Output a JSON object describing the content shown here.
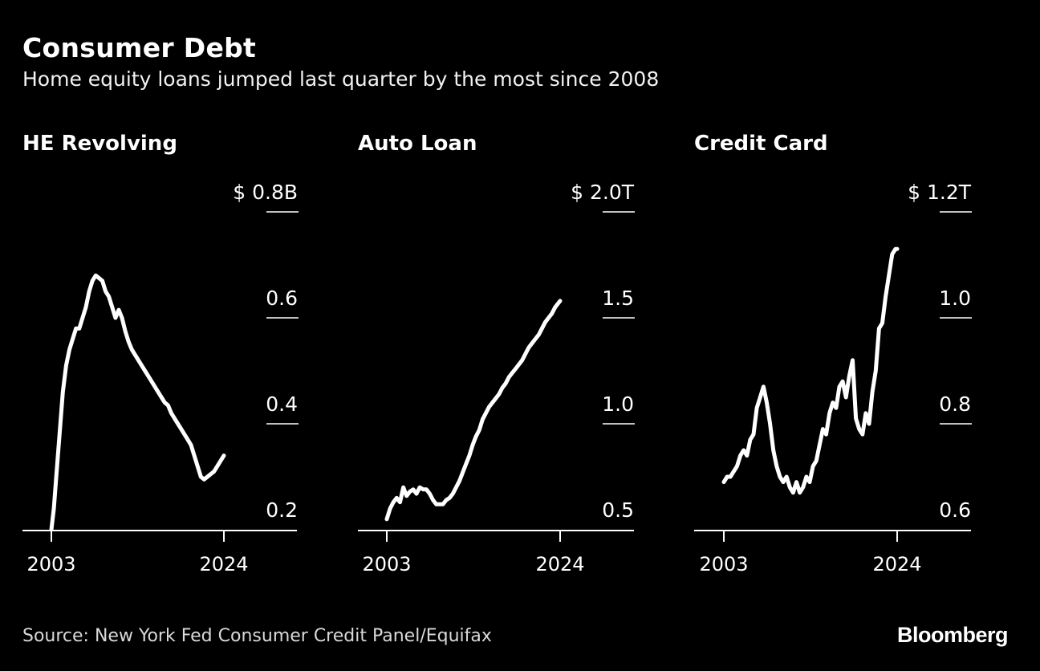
{
  "header": {
    "title": "Consumer Debt",
    "subtitle": "Home equity loans jumped last quarter by the most since 2008"
  },
  "footer": {
    "source": "Source: New York Fed Consumer Credit Panel/Equifax",
    "logo": "Bloomberg"
  },
  "colors": {
    "background": "#000000",
    "line": "#ffffff",
    "axis": "#ffffff"
  },
  "chart_data": [
    {
      "type": "line",
      "title": "HE Revolving",
      "unit": "B",
      "ylim": [
        0.2,
        0.8
      ],
      "yticks": [
        0.2,
        0.4,
        0.6,
        0.8
      ],
      "ytick_labels": [
        "0.2",
        "0.4",
        "0.6",
        "$ 0.8B"
      ],
      "xlim": [
        2003,
        2024
      ],
      "xticks": [
        2003,
        2024
      ],
      "grid": false,
      "x": [
        2003.0,
        2003.3,
        2003.6,
        2004.0,
        2004.4,
        2004.8,
        2005.2,
        2005.6,
        2006.0,
        2006.4,
        2006.8,
        2007.2,
        2007.6,
        2008.0,
        2008.4,
        2008.8,
        2009.2,
        2009.6,
        2010.0,
        2010.4,
        2010.8,
        2011.2,
        2011.6,
        2012.0,
        2012.4,
        2012.8,
        2013.2,
        2013.6,
        2014.0,
        2014.4,
        2014.8,
        2015.2,
        2015.6,
        2016.0,
        2016.4,
        2016.8,
        2017.2,
        2017.6,
        2018.0,
        2018.4,
        2018.8,
        2019.2,
        2019.6,
        2020.0,
        2020.4,
        2020.8,
        2021.2,
        2021.6,
        2022.0,
        2022.4,
        2022.8,
        2023.2,
        2023.6,
        2024.0
      ],
      "y": [
        0.2,
        0.24,
        0.3,
        0.38,
        0.46,
        0.51,
        0.54,
        0.56,
        0.58,
        0.58,
        0.6,
        0.62,
        0.65,
        0.67,
        0.68,
        0.675,
        0.67,
        0.65,
        0.64,
        0.62,
        0.6,
        0.615,
        0.6,
        0.575,
        0.555,
        0.54,
        0.53,
        0.52,
        0.51,
        0.5,
        0.49,
        0.48,
        0.47,
        0.46,
        0.45,
        0.44,
        0.435,
        0.42,
        0.41,
        0.4,
        0.39,
        0.38,
        0.37,
        0.36,
        0.34,
        0.32,
        0.3,
        0.295,
        0.3,
        0.305,
        0.31,
        0.32,
        0.33,
        0.34
      ]
    },
    {
      "type": "line",
      "title": "Auto Loan",
      "unit": "T",
      "ylim": [
        0.5,
        2.0
      ],
      "yticks": [
        0.5,
        1.0,
        1.5,
        2.0
      ],
      "ytick_labels": [
        "0.5",
        "1.0",
        "1.5",
        "$ 2.0T"
      ],
      "xlim": [
        2003,
        2024
      ],
      "xticks": [
        2003,
        2024
      ],
      "grid": false,
      "x": [
        2003.0,
        2003.4,
        2003.8,
        2004.2,
        2004.6,
        2005.0,
        2005.4,
        2005.8,
        2006.2,
        2006.6,
        2007.0,
        2007.4,
        2007.8,
        2008.2,
        2008.6,
        2009.0,
        2009.4,
        2009.8,
        2010.2,
        2010.6,
        2011.0,
        2011.4,
        2011.8,
        2012.2,
        2012.6,
        2013.0,
        2013.4,
        2013.8,
        2014.2,
        2014.6,
        2015.0,
        2015.4,
        2015.8,
        2016.2,
        2016.6,
        2017.0,
        2017.4,
        2017.8,
        2018.2,
        2018.6,
        2019.0,
        2019.4,
        2019.8,
        2020.2,
        2020.6,
        2021.0,
        2021.4,
        2021.8,
        2022.2,
        2022.6,
        2023.0,
        2023.4,
        2023.8,
        2024.0
      ],
      "y": [
        0.55,
        0.6,
        0.63,
        0.65,
        0.63,
        0.7,
        0.66,
        0.68,
        0.69,
        0.67,
        0.7,
        0.69,
        0.69,
        0.67,
        0.64,
        0.62,
        0.62,
        0.62,
        0.64,
        0.65,
        0.67,
        0.7,
        0.73,
        0.77,
        0.81,
        0.85,
        0.9,
        0.94,
        0.97,
        1.02,
        1.05,
        1.08,
        1.1,
        1.12,
        1.14,
        1.17,
        1.19,
        1.22,
        1.24,
        1.26,
        1.28,
        1.3,
        1.33,
        1.36,
        1.38,
        1.4,
        1.42,
        1.45,
        1.48,
        1.5,
        1.52,
        1.55,
        1.57,
        1.58
      ]
    },
    {
      "type": "line",
      "title": "Credit Card",
      "unit": "T",
      "ylim": [
        0.6,
        1.2
      ],
      "yticks": [
        0.6,
        0.8,
        1.0,
        1.2
      ],
      "ytick_labels": [
        "0.6",
        "0.8",
        "1.0",
        "$ 1.2T"
      ],
      "xlim": [
        2003,
        2024
      ],
      "xticks": [
        2003,
        2024
      ],
      "grid": false,
      "x": [
        2003.0,
        2003.4,
        2003.8,
        2004.2,
        2004.6,
        2005.0,
        2005.4,
        2005.8,
        2006.2,
        2006.6,
        2007.0,
        2007.4,
        2007.8,
        2008.2,
        2008.6,
        2009.0,
        2009.4,
        2009.8,
        2010.2,
        2010.6,
        2011.0,
        2011.4,
        2011.8,
        2012.2,
        2012.6,
        2013.0,
        2013.4,
        2013.8,
        2014.2,
        2014.6,
        2015.0,
        2015.4,
        2015.8,
        2016.2,
        2016.6,
        2017.0,
        2017.4,
        2017.8,
        2018.2,
        2018.6,
        2019.0,
        2019.4,
        2019.8,
        2020.2,
        2020.6,
        2021.0,
        2021.4,
        2021.8,
        2022.2,
        2022.6,
        2023.0,
        2023.4,
        2023.8,
        2024.0
      ],
      "y": [
        0.69,
        0.7,
        0.7,
        0.71,
        0.72,
        0.74,
        0.75,
        0.74,
        0.77,
        0.78,
        0.83,
        0.85,
        0.87,
        0.84,
        0.8,
        0.75,
        0.72,
        0.7,
        0.69,
        0.7,
        0.68,
        0.67,
        0.69,
        0.67,
        0.68,
        0.7,
        0.69,
        0.72,
        0.73,
        0.76,
        0.79,
        0.78,
        0.82,
        0.84,
        0.83,
        0.87,
        0.88,
        0.85,
        0.89,
        0.92,
        0.81,
        0.79,
        0.78,
        0.82,
        0.8,
        0.86,
        0.9,
        0.98,
        0.99,
        1.04,
        1.08,
        1.12,
        1.13,
        1.13
      ]
    }
  ]
}
